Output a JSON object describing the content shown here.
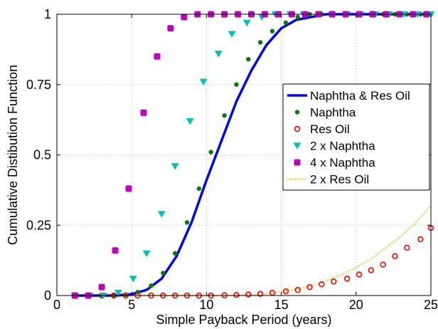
{
  "chart_data": {
    "type": "scatter",
    "title": "",
    "xlabel": "Simple Payback Period (years)",
    "ylabel": "Cumulative Distibution Function",
    "xlim": [
      0,
      25
    ],
    "ylim": [
      0,
      1
    ],
    "xticks": [
      0,
      5,
      10,
      15,
      20,
      25
    ],
    "yticks": [
      0,
      0.25,
      0.5,
      0.75,
      1
    ],
    "ytick_labels": [
      "0",
      "0.25",
      "0.5",
      "0.75",
      "1"
    ],
    "grid": true,
    "legend_position": "right",
    "series": [
      {
        "name": "Naphtha & Res Oil",
        "style": "line",
        "color": "#0000ff",
        "x": [
          1.2,
          2,
          3,
          4,
          5,
          6,
          7,
          8,
          9,
          10,
          11,
          12,
          13,
          14,
          15,
          16,
          17,
          18,
          19,
          20,
          21,
          22,
          23,
          24,
          25
        ],
        "y": [
          0.0,
          0.0,
          0.0,
          0.0,
          0.005,
          0.02,
          0.06,
          0.14,
          0.26,
          0.41,
          0.55,
          0.69,
          0.8,
          0.89,
          0.95,
          0.98,
          0.99,
          1.0,
          1.0,
          1.0,
          1.0,
          1.0,
          1.0,
          1.0,
          1.0
        ]
      },
      {
        "name": "Naphtha",
        "style": "dot",
        "color": "#008000",
        "x": [
          1.2,
          2.1,
          3.0,
          3.8,
          4.6,
          5.4,
          6.3,
          7.1,
          7.9,
          8.7,
          9.5,
          10.3,
          11.2,
          12.0,
          12.8,
          13.6,
          14.4,
          15.3,
          16.1,
          16.9,
          17.7,
          18.5,
          19.4,
          20.2,
          21.0,
          21.8,
          22.6,
          23.4,
          24.3,
          25.0
        ],
        "y": [
          0.0,
          0.0,
          0.0,
          0.0,
          0.003,
          0.012,
          0.035,
          0.08,
          0.15,
          0.26,
          0.38,
          0.51,
          0.64,
          0.75,
          0.84,
          0.9,
          0.94,
          0.97,
          0.99,
          1.0,
          1.0,
          1.0,
          1.0,
          1.0,
          1.0,
          1.0,
          1.0,
          1.0,
          1.0,
          1.0
        ]
      },
      {
        "name": "Res Oil",
        "style": "circle",
        "color": "#ff0000",
        "x": [
          1.2,
          2.1,
          3.0,
          3.8,
          4.6,
          5.4,
          6.3,
          7.1,
          7.9,
          8.7,
          9.5,
          10.3,
          11.2,
          12.0,
          12.8,
          13.6,
          14.4,
          15.3,
          16.1,
          16.9,
          17.7,
          18.5,
          19.4,
          20.2,
          21.0,
          21.8,
          22.6,
          23.4,
          24.3,
          25.0
        ],
        "y": [
          0.0,
          0.0,
          0.0,
          0.0,
          0.0,
          0.0,
          0.0,
          0.0,
          0.0,
          0.0,
          0.0,
          0.0,
          0.001,
          0.002,
          0.004,
          0.006,
          0.01,
          0.015,
          0.02,
          0.03,
          0.04,
          0.05,
          0.06,
          0.075,
          0.09,
          0.11,
          0.14,
          0.17,
          0.2,
          0.24
        ]
      },
      {
        "name": "2 x Naphtha",
        "style": "triangle-down",
        "color": "#00bfbf",
        "x": [
          1.2,
          2.2,
          3.1,
          4.1,
          5.1,
          6.0,
          7.0,
          7.9,
          8.9,
          9.8,
          10.8,
          11.7,
          12.7,
          13.7,
          14.6,
          15.6,
          16.5,
          17.5,
          18.4,
          19.4,
          20.3,
          21.3,
          22.2,
          23.2,
          24.1,
          25.0
        ],
        "y": [
          0.0,
          0.0,
          0.0,
          0.01,
          0.06,
          0.15,
          0.29,
          0.46,
          0.62,
          0.76,
          0.86,
          0.93,
          0.97,
          0.99,
          1.0,
          1.0,
          1.0,
          1.0,
          1.0,
          1.0,
          1.0,
          1.0,
          1.0,
          1.0,
          1.0,
          1.0
        ]
      },
      {
        "name": "4 x Naphtha",
        "style": "square",
        "color": "#bf00bf",
        "x": [
          1.2,
          2.1,
          3.0,
          3.9,
          4.8,
          5.8,
          6.7,
          7.6,
          8.5,
          9.4,
          10.3,
          11.2,
          12.1,
          13.0,
          13.9,
          14.8,
          15.7,
          16.6,
          17.5,
          18.4,
          19.3,
          20.2,
          21.1,
          22.0,
          22.9,
          23.8,
          24.7
        ],
        "y": [
          0.0,
          0.0,
          0.03,
          0.16,
          0.38,
          0.65,
          0.85,
          0.95,
          0.99,
          1.0,
          1.0,
          1.0,
          1.0,
          1.0,
          1.0,
          1.0,
          1.0,
          1.0,
          1.0,
          1.0,
          1.0,
          1.0,
          1.0,
          1.0,
          1.0,
          1.0,
          1.0
        ]
      },
      {
        "name": "2 x Res Oil",
        "style": "dotted-line",
        "color": "#d6d65a",
        "x": [
          1.2,
          2,
          3,
          4,
          5,
          6,
          7,
          8,
          9,
          10,
          11,
          12,
          13,
          14,
          15,
          16,
          17,
          18,
          19,
          20,
          21,
          22,
          23,
          24,
          25
        ],
        "y": [
          0.0,
          0.0,
          0.0,
          0.0,
          0.0,
          0.0,
          0.0,
          0.0,
          0.0,
          0.0,
          0.0,
          0.001,
          0.003,
          0.007,
          0.013,
          0.022,
          0.035,
          0.052,
          0.074,
          0.1,
          0.13,
          0.17,
          0.21,
          0.26,
          0.32
        ]
      }
    ]
  }
}
